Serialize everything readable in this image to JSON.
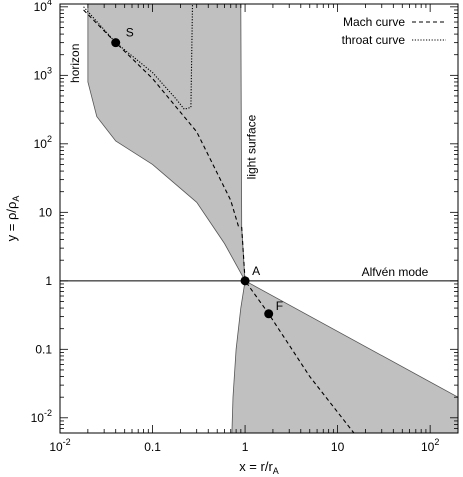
{
  "chart_data": {
    "type": "line",
    "xlabel": "x = r/r",
    "xlabel_sub": "A",
    "ylabel": "y = ρ/ρ",
    "ylabel_sub": "A",
    "xscale": "log",
    "yscale": "log",
    "xlim": [
      0.01,
      200
    ],
    "ylim": [
      0.006,
      11000
    ],
    "xticks": [
      {
        "v": 0.01,
        "base": "10",
        "exp": "-2"
      },
      {
        "v": 0.1,
        "base": "0.1",
        "exp": ""
      },
      {
        "v": 1,
        "base": "1",
        "exp": ""
      },
      {
        "v": 10,
        "base": "10",
        "exp": ""
      },
      {
        "v": 100,
        "base": "10",
        "exp": "2"
      }
    ],
    "yticks": [
      {
        "v": 0.01,
        "base": "10",
        "exp": "-2"
      },
      {
        "v": 0.1,
        "base": "0.1",
        "exp": ""
      },
      {
        "v": 1,
        "base": "1",
        "exp": ""
      },
      {
        "v": 10,
        "base": "10",
        "exp": ""
      },
      {
        "v": 100,
        "base": "10",
        "exp": "2"
      },
      {
        "v": 1000,
        "base": "10",
        "exp": "3"
      },
      {
        "v": 10000,
        "base": "10",
        "exp": "4"
      }
    ],
    "shade_color": "#c0c0c0",
    "legend_position": "top-right",
    "series": [
      {
        "name": "Mach curve",
        "dash": "dashed",
        "points": [
          [
            0.018,
            9000
          ],
          [
            0.04,
            3000
          ],
          [
            0.1,
            900
          ],
          [
            0.3,
            150
          ],
          [
            0.7,
            15
          ],
          [
            0.85,
            6.2
          ],
          [
            0.92,
            6
          ],
          [
            1,
            1
          ],
          [
            1.8,
            0.33
          ],
          [
            5,
            0.04
          ],
          [
            15,
            0.006
          ]
        ]
      },
      {
        "name": "throat curve",
        "dash": "dotted",
        "points": [
          [
            0.018,
            10000
          ],
          [
            0.04,
            3000
          ],
          [
            0.1,
            1100
          ],
          [
            0.18,
            450
          ],
          [
            0.22,
            320
          ],
          [
            0.26,
            340
          ],
          [
            0.27,
            11000
          ]
        ]
      }
    ],
    "alfven_line": {
      "label": "Alfvén mode",
      "y": 1
    },
    "annotations": [
      {
        "text": "horizon",
        "x": 0.016,
        "y": 1500,
        "rotate": true
      },
      {
        "text": "light surface",
        "x": 1.3,
        "y": 90,
        "rotate": true
      }
    ],
    "points": [
      {
        "label": "S",
        "x": 0.04,
        "y": 3000
      },
      {
        "label": "A",
        "x": 1,
        "y": 1
      },
      {
        "label": "F",
        "x": 1.8,
        "y": 0.33
      }
    ],
    "shaded_regions": [
      {
        "name": "upper-left",
        "boundary": [
          [
            0.02,
            11000
          ],
          [
            0.02,
            800
          ],
          [
            0.025,
            250
          ],
          [
            0.04,
            110
          ],
          [
            0.1,
            50
          ],
          [
            0.3,
            14
          ],
          [
            0.6,
            3.5
          ],
          [
            1,
            1
          ],
          [
            0.98,
            1.4
          ],
          [
            0.95,
            3
          ],
          [
            0.92,
            6
          ],
          [
            0.9,
            11000
          ]
        ]
      },
      {
        "name": "lower-right",
        "boundary": [
          [
            1,
            1
          ],
          [
            200,
            0.02
          ],
          [
            200,
            0.006
          ],
          [
            0.72,
            0.006
          ],
          [
            0.74,
            0.02
          ],
          [
            0.8,
            0.1
          ],
          [
            0.9,
            0.4
          ]
        ]
      }
    ]
  }
}
